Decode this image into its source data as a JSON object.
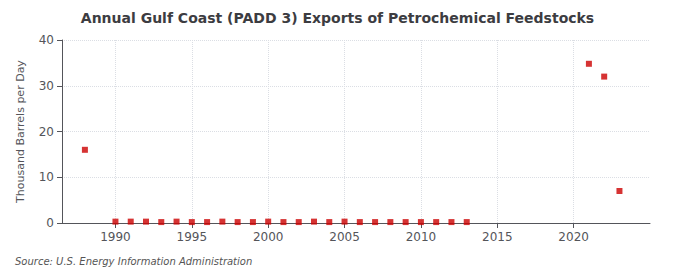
{
  "chart_data": {
    "type": "scatter",
    "title": "Annual Gulf Coast (PADD 3) Exports of Petrochemical Feedstocks",
    "ylabel": "Thousand Barrels per Day",
    "source": "Source: U.S. Energy Information Administration",
    "x": [
      1988,
      1990,
      1991,
      1992,
      1993,
      1994,
      1995,
      1996,
      1997,
      1998,
      1999,
      2000,
      2001,
      2002,
      2003,
      2004,
      2005,
      2006,
      2007,
      2008,
      2009,
      2010,
      2011,
      2012,
      2013,
      2021,
      2022,
      2023
    ],
    "values": [
      16.0,
      0.3,
      0.3,
      0.3,
      0.2,
      0.3,
      0.2,
      0.2,
      0.3,
      0.2,
      0.2,
      0.3,
      0.2,
      0.2,
      0.3,
      0.2,
      0.3,
      0.2,
      0.2,
      0.2,
      0.2,
      0.2,
      0.2,
      0.2,
      0.2,
      34.8,
      32.0,
      7.0
    ],
    "color": "#cc0000",
    "marker": "square",
    "xlim": [
      1986.5,
      2025
    ],
    "ylim": [
      0,
      40
    ],
    "xticks": [
      1990,
      1995,
      2000,
      2005,
      2010,
      2015,
      2020
    ],
    "yticks": [
      0,
      10,
      20,
      30,
      40
    ],
    "grid": true
  }
}
